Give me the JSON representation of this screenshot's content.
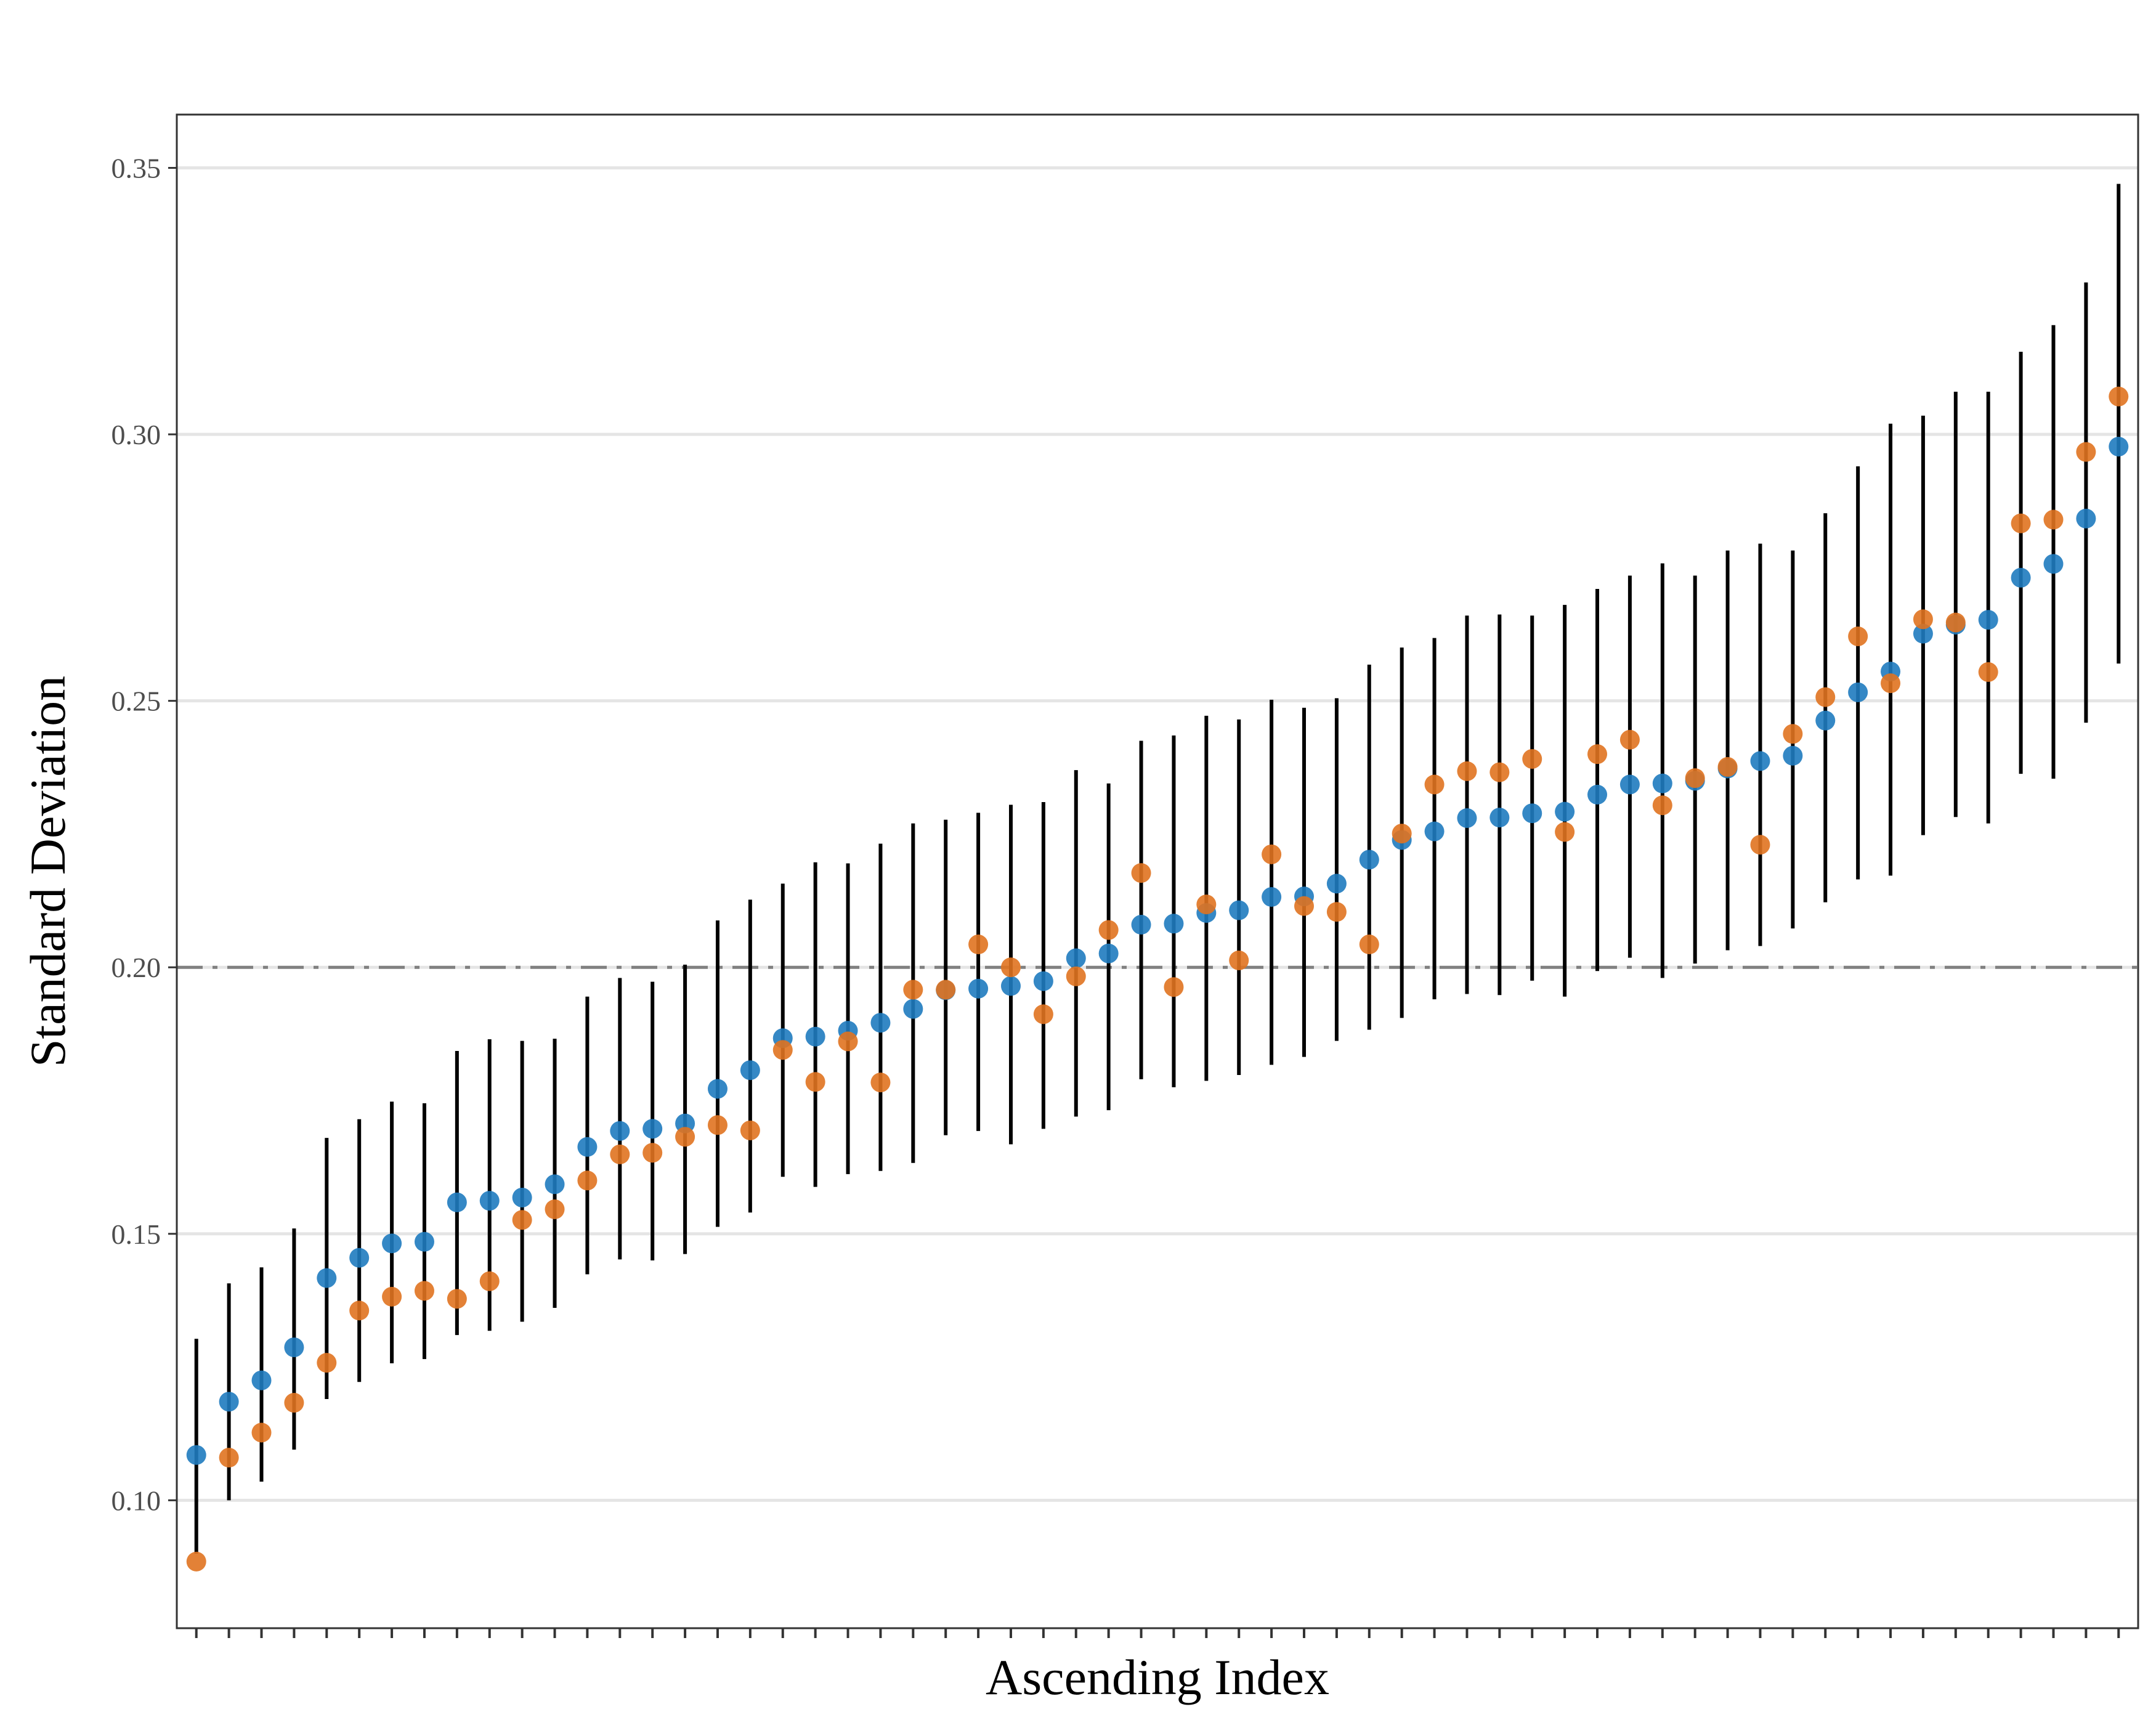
{
  "chart_data": {
    "type": "scatter",
    "title": "",
    "xlabel": "Ascending Index",
    "ylabel": "Standard Deviation",
    "xlim": [
      0.4,
      60.6
    ],
    "ylim": [
      0.076,
      0.36
    ],
    "yticks": [
      0.1,
      0.15,
      0.2,
      0.25,
      0.3,
      0.35
    ],
    "ytick_labels": [
      "0.10",
      "0.15",
      "0.20",
      "0.25",
      "0.30",
      "0.35"
    ],
    "x_tick_labels_shown": false,
    "grid": "horizontal major",
    "reference_line": {
      "y": 0.2,
      "style": "dash-dot",
      "color": "#808080"
    },
    "colors": {
      "series_a": "#1f7bbf",
      "series_b": "#e07320",
      "interval": "#000000"
    },
    "x": [
      1,
      2,
      3,
      4,
      5,
      6,
      7,
      8,
      9,
      10,
      11,
      12,
      13,
      14,
      15,
      16,
      17,
      18,
      19,
      20,
      21,
      22,
      23,
      24,
      25,
      26,
      27,
      28,
      29,
      30,
      31,
      32,
      33,
      34,
      35,
      36,
      37,
      38,
      39,
      40,
      41,
      42,
      43,
      44,
      45,
      46,
      47,
      48,
      49,
      50,
      51,
      52,
      53,
      54,
      55,
      56,
      57,
      58,
      59,
      60
    ],
    "series": [
      {
        "color": "#1f7bbf",
        "values": [
          0.1085,
          0.1185,
          0.1225,
          0.1287,
          0.1417,
          0.1455,
          0.1482,
          0.1485,
          0.1559,
          0.1562,
          0.1568,
          0.1593,
          0.1663,
          0.1693,
          0.1697,
          0.1707,
          0.1772,
          0.1807,
          0.1867,
          0.187,
          0.1881,
          0.1896,
          0.1922,
          0.1957,
          0.196,
          0.1965,
          0.1974,
          0.2017,
          0.2026,
          0.208,
          0.2082,
          0.2102,
          0.2107,
          0.2132,
          0.2133,
          0.2157,
          0.2202,
          0.2239,
          0.2255,
          0.228,
          0.2281,
          0.2289,
          0.2292,
          0.2324,
          0.2343,
          0.2345,
          0.235,
          0.2373,
          0.2387,
          0.2397,
          0.2463,
          0.2516,
          0.2555,
          0.2626,
          0.2643,
          0.2652,
          0.2731,
          0.2757,
          0.2842,
          0.2977
        ]
      },
      {
        "color": "#e07320",
        "values": [
          0.0885,
          0.108,
          0.1127,
          0.1183,
          0.1258,
          0.1356,
          0.1382,
          0.1393,
          0.1378,
          0.1411,
          0.1526,
          0.1546,
          0.16,
          0.1649,
          0.1652,
          0.1682,
          0.1704,
          0.1694,
          0.1845,
          0.1785,
          0.1861,
          0.1784,
          0.1958,
          0.1958,
          0.2043,
          0.2,
          0.1912,
          0.1983,
          0.207,
          0.2177,
          0.1963,
          0.2118,
          0.2013,
          0.2212,
          0.2115,
          0.2104,
          0.2043,
          0.2251,
          0.2343,
          0.2368,
          0.2366,
          0.2391,
          0.2254,
          0.24,
          0.2427,
          0.2304,
          0.2355,
          0.2376,
          0.223,
          0.2438,
          0.2507,
          0.2621,
          0.2533,
          0.2653,
          0.2647,
          0.2554,
          0.2833,
          0.284,
          0.2967,
          0.3071
        ]
      }
    ],
    "intervals": {
      "lower": [
        0.09,
        0.1,
        0.1035,
        0.1095,
        0.119,
        0.1222,
        0.1257,
        0.1265,
        0.131,
        0.1318,
        0.1335,
        0.1361,
        0.1424,
        0.1452,
        0.145,
        0.1462,
        0.1513,
        0.154,
        0.1607,
        0.1588,
        0.1612,
        0.1618,
        0.1633,
        0.1685,
        0.1693,
        0.1668,
        0.1697,
        0.172,
        0.1732,
        0.179,
        0.1775,
        0.1787,
        0.1798,
        0.1817,
        0.1832,
        0.1862,
        0.1883,
        0.1905,
        0.194,
        0.195,
        0.1948,
        0.1975,
        0.1945,
        0.1993,
        0.2018,
        0.198,
        0.2007,
        0.2032,
        0.204,
        0.2073,
        0.2122,
        0.2165,
        0.2172,
        0.2248,
        0.2282,
        0.227,
        0.2363,
        0.2354,
        0.2459,
        0.257
      ],
      "upper": [
        0.1303,
        0.1407,
        0.1437,
        0.151,
        0.168,
        0.1715,
        0.1748,
        0.1745,
        0.1843,
        0.1865,
        0.1862,
        0.1866,
        0.1945,
        0.198,
        0.1973,
        0.2005,
        0.2088,
        0.2127,
        0.2157,
        0.2197,
        0.2195,
        0.2232,
        0.227,
        0.2277,
        0.229,
        0.2305,
        0.231,
        0.237,
        0.2345,
        0.2425,
        0.2435,
        0.2472,
        0.2465,
        0.2502,
        0.2487,
        0.2505,
        0.2568,
        0.26,
        0.2618,
        0.266,
        0.2662,
        0.266,
        0.268,
        0.271,
        0.2735,
        0.2758,
        0.2735,
        0.2782,
        0.2795,
        0.2782,
        0.2852,
        0.294,
        0.302,
        0.3035,
        0.308,
        0.308,
        0.3155,
        0.3205,
        0.3285,
        0.347
      ]
    }
  }
}
